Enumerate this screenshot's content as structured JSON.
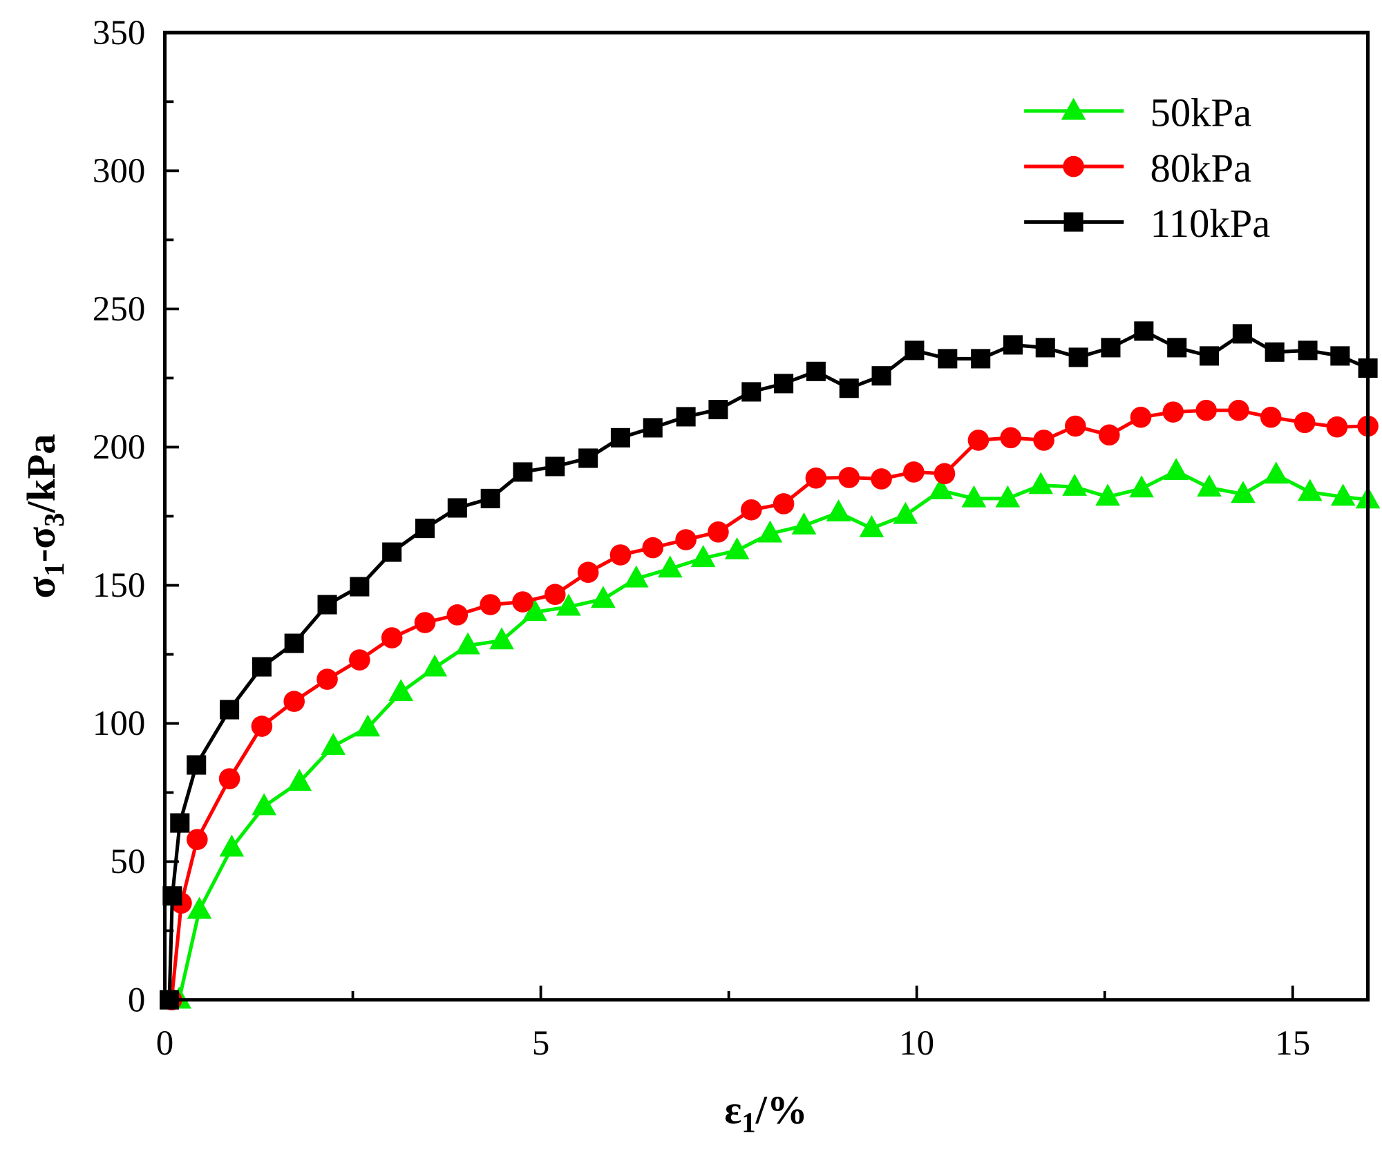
{
  "chart_data": {
    "type": "line",
    "title": "",
    "xlabel": {
      "main": "ε",
      "sub": "1",
      "rest": "/%"
    },
    "ylabel": {
      "p1": "σ",
      "s1": "1",
      "p2": "-σ",
      "s2": "3",
      "p3": "/kPa"
    },
    "xlim": [
      0,
      16
    ],
    "ylim": [
      0,
      350
    ],
    "x_ticks": [
      0,
      5,
      10,
      15
    ],
    "x_minor_step": 2.5,
    "y_ticks": [
      0,
      50,
      100,
      150,
      200,
      250,
      300,
      350
    ],
    "y_minor_step": 25,
    "grid": false,
    "legend_position": "top-right",
    "series": [
      {
        "name": "50kPa",
        "color": "#00ee00",
        "marker": "triangle",
        "points": [
          [
            0.19,
            0
          ],
          [
            0.46,
            32.5
          ],
          [
            0.89,
            55
          ],
          [
            1.32,
            70
          ],
          [
            1.79,
            78.8
          ],
          [
            2.24,
            91.8
          ],
          [
            2.7,
            98.5
          ],
          [
            3.14,
            111.3
          ],
          [
            3.59,
            120.2
          ],
          [
            4.03,
            128.2
          ],
          [
            4.48,
            130
          ],
          [
            4.92,
            140.3
          ],
          [
            5.37,
            142.2
          ],
          [
            5.83,
            145
          ],
          [
            6.27,
            152.4
          ],
          [
            6.72,
            156
          ],
          [
            7.16,
            159.8
          ],
          [
            7.61,
            162.6
          ],
          [
            8.05,
            168.7
          ],
          [
            8.5,
            171.6
          ],
          [
            8.96,
            176.3
          ],
          [
            9.4,
            170.6
          ],
          [
            9.85,
            175.4
          ],
          [
            10.32,
            184.3
          ],
          [
            10.76,
            181.4
          ],
          [
            11.21,
            181.4
          ],
          [
            11.65,
            186.2
          ],
          [
            12.1,
            185.6
          ],
          [
            12.54,
            182
          ],
          [
            12.99,
            185
          ],
          [
            13.45,
            191.3
          ],
          [
            13.89,
            185.3
          ],
          [
            14.34,
            183
          ],
          [
            14.78,
            190
          ],
          [
            15.23,
            183.7
          ],
          [
            15.67,
            182
          ],
          [
            16.0,
            181
          ]
        ]
      },
      {
        "name": "80kPa",
        "color": "#ff0000",
        "marker": "circle",
        "points": [
          [
            0.09,
            0
          ],
          [
            0.22,
            35
          ],
          [
            0.43,
            58
          ],
          [
            0.86,
            80
          ],
          [
            1.29,
            99
          ],
          [
            1.72,
            108
          ],
          [
            2.16,
            116
          ],
          [
            2.59,
            123
          ],
          [
            3.02,
            131
          ],
          [
            3.46,
            136.5
          ],
          [
            3.89,
            139.3
          ],
          [
            4.33,
            143
          ],
          [
            4.76,
            144
          ],
          [
            5.19,
            146.7
          ],
          [
            5.63,
            154.7
          ],
          [
            6.06,
            161
          ],
          [
            6.49,
            163.6
          ],
          [
            6.93,
            166.5
          ],
          [
            7.36,
            169.3
          ],
          [
            7.8,
            177.3
          ],
          [
            8.23,
            179.5
          ],
          [
            8.66,
            188.8
          ],
          [
            9.1,
            189
          ],
          [
            9.53,
            188.5
          ],
          [
            9.96,
            191
          ],
          [
            10.37,
            190.4
          ],
          [
            10.82,
            202.5
          ],
          [
            11.25,
            203.4
          ],
          [
            11.69,
            202.5
          ],
          [
            12.11,
            207.6
          ],
          [
            12.56,
            204.4
          ],
          [
            12.98,
            210.8
          ],
          [
            13.41,
            212.7
          ],
          [
            13.85,
            213.3
          ],
          [
            14.28,
            213.3
          ],
          [
            14.71,
            210.8
          ],
          [
            15.16,
            208.9
          ],
          [
            15.59,
            207.3
          ],
          [
            16.0,
            207.6
          ]
        ]
      },
      {
        "name": "110kPa",
        "color": "#000000",
        "marker": "square",
        "points": [
          [
            0.06,
            0
          ],
          [
            0.1,
            37.6
          ],
          [
            0.2,
            64
          ],
          [
            0.42,
            85
          ],
          [
            0.86,
            105
          ],
          [
            1.29,
            120.5
          ],
          [
            1.72,
            129
          ],
          [
            2.16,
            143
          ],
          [
            2.59,
            149.5
          ],
          [
            3.02,
            162
          ],
          [
            3.46,
            170.6
          ],
          [
            3.89,
            178
          ],
          [
            4.33,
            181.4
          ],
          [
            4.76,
            191
          ],
          [
            5.19,
            193
          ],
          [
            5.63,
            196
          ],
          [
            6.06,
            203.4
          ],
          [
            6.49,
            207
          ],
          [
            6.93,
            211
          ],
          [
            7.36,
            213.6
          ],
          [
            7.8,
            220
          ],
          [
            8.23,
            223
          ],
          [
            8.66,
            227.4
          ],
          [
            9.1,
            221.3
          ],
          [
            9.53,
            225.8
          ],
          [
            9.97,
            235
          ],
          [
            10.41,
            232
          ],
          [
            10.85,
            232
          ],
          [
            11.28,
            237
          ],
          [
            11.71,
            236
          ],
          [
            12.15,
            232.5
          ],
          [
            12.58,
            236
          ],
          [
            13.02,
            242
          ],
          [
            13.46,
            236
          ],
          [
            13.89,
            233
          ],
          [
            14.33,
            241
          ],
          [
            14.76,
            234.4
          ],
          [
            15.2,
            235
          ],
          [
            15.63,
            233
          ],
          [
            16.0,
            228.6
          ]
        ]
      }
    ]
  }
}
